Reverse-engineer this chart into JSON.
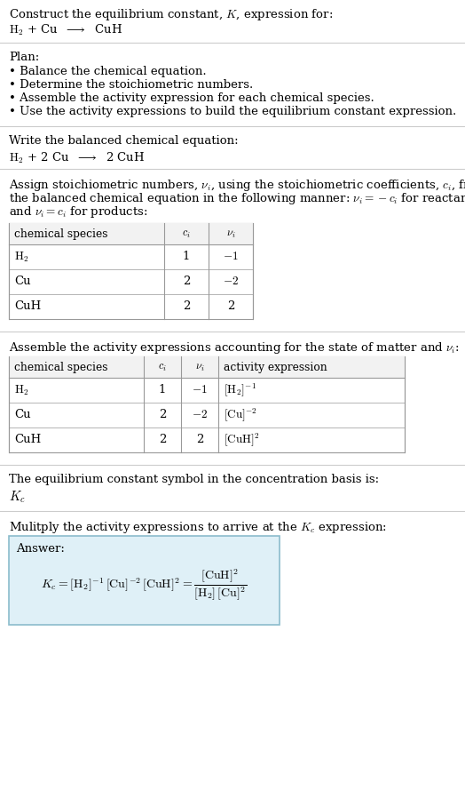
{
  "title_line1": "Construct the equilibrium constant, $K$, expression for:",
  "title_line2": "$\\mathrm{H_2}$ + Cu  $\\longrightarrow$  CuH",
  "plan_header": "Plan:",
  "plan_items": [
    "• Balance the chemical equation.",
    "• Determine the stoichiometric numbers.",
    "• Assemble the activity expression for each chemical species.",
    "• Use the activity expressions to build the equilibrium constant expression."
  ],
  "balanced_header": "Write the balanced chemical equation:",
  "balanced_eq": "$\\mathrm{H_2}$ + 2 Cu  $\\longrightarrow$  2 CuH",
  "stoich_lines": [
    "Assign stoichiometric numbers, $\\nu_i$, using the stoichiometric coefficients, $c_i$, from",
    "the balanced chemical equation in the following manner: $\\nu_i = -c_i$ for reactants",
    "and $\\nu_i = c_i$ for products:"
  ],
  "table1_headers": [
    "chemical species",
    "$c_i$",
    "$\\nu_i$"
  ],
  "table1_rows": [
    [
      "$\\mathrm{H_2}$",
      "1",
      "$-1$"
    ],
    [
      "Cu",
      "2",
      "$-2$"
    ],
    [
      "CuH",
      "2",
      "2"
    ]
  ],
  "activity_header": "Assemble the activity expressions accounting for the state of matter and $\\nu_i$:",
  "table2_headers": [
    "chemical species",
    "$c_i$",
    "$\\nu_i$",
    "activity expression"
  ],
  "table2_rows": [
    [
      "$\\mathrm{H_2}$",
      "1",
      "$-1$",
      "$[\\mathrm{H_2}]^{-1}$"
    ],
    [
      "Cu",
      "2",
      "$-2$",
      "$[\\mathrm{Cu}]^{-2}$"
    ],
    [
      "CuH",
      "2",
      "2",
      "$[\\mathrm{CuH}]^2$"
    ]
  ],
  "kc_header": "The equilibrium constant symbol in the concentration basis is:",
  "kc_symbol": "$K_c$",
  "multiply_header": "Mulitply the activity expressions to arrive at the $K_c$ expression:",
  "answer_label": "Answer:",
  "bg_color": "#ffffff",
  "answer_box_color": "#dff0f7",
  "answer_box_border": "#8bbccc",
  "table_border_color": "#999999",
  "text_color": "#000000",
  "font_size": 9.5,
  "separator_color": "#cccccc"
}
